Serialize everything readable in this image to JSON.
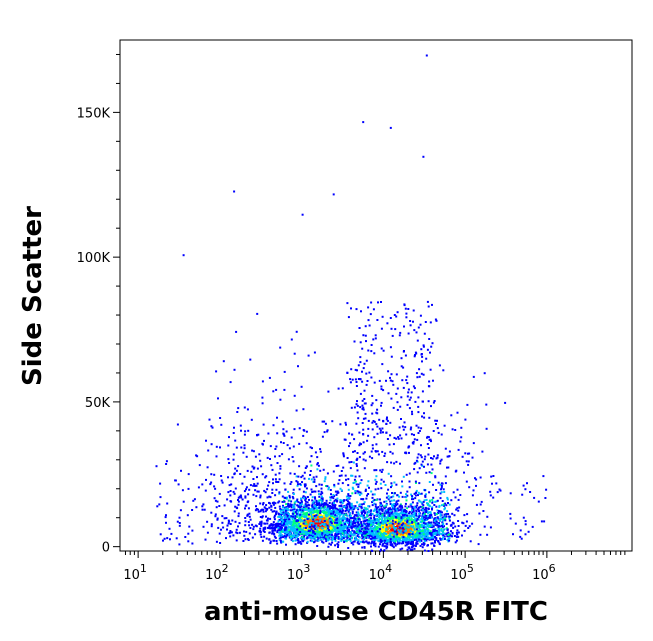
{
  "chart_data": {
    "type": "scatter",
    "title": "",
    "xlabel": "anti-mouse CD45R FITC",
    "ylabel": "Side Scatter",
    "x_scale": "log",
    "xlim": [
      6,
      11000000
    ],
    "ylim": [
      -1500,
      175000
    ],
    "x_ticks": [
      {
        "value": 10,
        "base": "10",
        "exp": "1"
      },
      {
        "value": 100,
        "base": "10",
        "exp": "2"
      },
      {
        "value": 1000,
        "base": "10",
        "exp": "3"
      },
      {
        "value": 10000,
        "base": "10",
        "exp": "4"
      },
      {
        "value": 100000,
        "base": "10",
        "exp": "5"
      },
      {
        "value": 1000000,
        "base": "10",
        "exp": "6"
      }
    ],
    "y_ticks": [
      {
        "value": 0,
        "label": "0"
      },
      {
        "value": 50000,
        "label": "50K"
      },
      {
        "value": 100000,
        "label": "100K"
      },
      {
        "value": 150000,
        "label": "150K"
      }
    ],
    "grid": false,
    "density_colormap": [
      "#0000ff",
      "#00bfff",
      "#00ff7f",
      "#ffff00",
      "#ff8000",
      "#ff0000"
    ],
    "populations": [
      {
        "center_x": 1500,
        "center_ssc": 8000,
        "peak_density": "high"
      },
      {
        "center_x": 15000,
        "center_ssc": 6000,
        "peak_density": "high"
      },
      {
        "center_x": 25000,
        "center_ssc": 60000,
        "peak_density": "low"
      }
    ],
    "outlier_points": [
      {
        "x": 35,
        "y": 101000
      },
      {
        "x": 145,
        "y": 123000
      },
      {
        "x": 1000,
        "y": 115000
      },
      {
        "x": 5500,
        "y": 147000
      },
      {
        "x": 12000,
        "y": 145000
      },
      {
        "x": 33000,
        "y": 170000
      },
      {
        "x": 30000,
        "y": 135000
      },
      {
        "x": 300000,
        "y": 50000
      },
      {
        "x": 2400,
        "y": 122000
      }
    ]
  }
}
